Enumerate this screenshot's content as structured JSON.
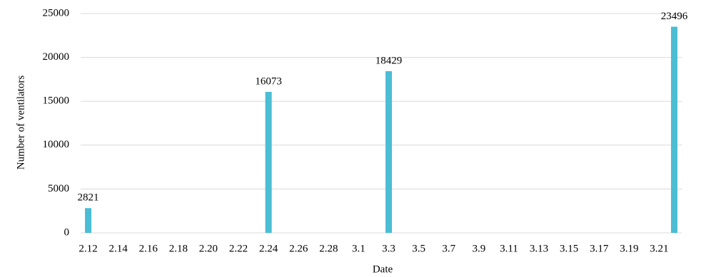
{
  "chart_data": {
    "type": "bar",
    "x_label": "Date",
    "y_label": "Number of ventilators",
    "categories": [
      "2.12",
      null,
      "2.14",
      null,
      "2.16",
      null,
      "2.18",
      null,
      "2.20",
      null,
      "2.22",
      null,
      "2.24",
      null,
      "2.26",
      null,
      "2.28",
      null,
      "3.1",
      null,
      "3.3",
      null,
      "3.5",
      null,
      "3.7",
      null,
      "3.9",
      null,
      "3.11",
      null,
      "3.13",
      null,
      "3.15",
      null,
      "3.17",
      null,
      "3.19",
      null,
      "3.21",
      null
    ],
    "values": [
      2821,
      null,
      null,
      null,
      null,
      null,
      null,
      null,
      null,
      null,
      null,
      null,
      16073,
      null,
      null,
      null,
      null,
      null,
      null,
      null,
      18429,
      null,
      null,
      null,
      null,
      null,
      null,
      null,
      null,
      null,
      null,
      null,
      null,
      null,
      null,
      null,
      null,
      null,
      null,
      23496
    ],
    "color": "#4bbdd4",
    "ylim": [
      0,
      25000
    ],
    "yticks": [
      0,
      5000,
      10000,
      15000,
      20000,
      25000
    ],
    "grid": true
  }
}
